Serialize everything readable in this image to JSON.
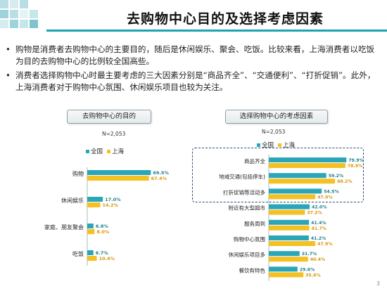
{
  "title": "去购物中心目的及选择考虑因素",
  "bullets": [
    "购物是消费者去购物中心的主要目的，随后是休闲娱乐、聚会、吃饭。比较来看，上海消费者以吃饭为目的去购物中心的比例较全国高些。",
    "消费者选择购物中心时最主要考虑的三大因素分别是“商品齐全”、“交通便利”、“打折促销”。此外，上海消费者对于购物中心氛围、休闲娱乐项目也较为关注。"
  ],
  "colors": {
    "national": "#2aa6b8",
    "shanghai": "#f5c022",
    "accent": "#1aa3b5"
  },
  "page_number": "3",
  "chart_data": [
    {
      "type": "bar",
      "orientation": "horizontal",
      "title": "去购物中心的目的",
      "note": "N=2,053",
      "categories": [
        "购物",
        "休闲娱乐",
        "家庭、朋友聚会",
        "吃饭"
      ],
      "series": [
        {
          "name": "全国",
          "values": [
            69.5,
            17.0,
            6.8,
            6.7
          ],
          "labels": [
            "69.5%",
            "17.0%",
            "6.8%",
            "6.7%"
          ]
        },
        {
          "name": "上海",
          "values": [
            67.4,
            14.2,
            8.0,
            10.4
          ],
          "labels": [
            "67.4%",
            "14.2%",
            "8.0%",
            "10.4%"
          ]
        }
      ],
      "xlim": [
        0,
        100
      ],
      "legend": "top-left",
      "grid": false
    },
    {
      "type": "bar",
      "orientation": "horizontal",
      "title": "选择购物中心的考虑因素",
      "note": "N=2,053",
      "categories": [
        "商品齐全",
        "地域交通(包括停车)",
        "打折促销等活动多",
        "附近有大型超市",
        "服务周到",
        "购物中心氛围",
        "休闲娱乐项目多",
        "餐饮有特色"
      ],
      "series": [
        {
          "name": "全国",
          "values": [
            79.9,
            59.2,
            54.5,
            42.0,
            41.4,
            41.2,
            31.7,
            29.6
          ],
          "labels": [
            "79.9%",
            "59.2%",
            "54.5%",
            "42.0%",
            "41.4%",
            "41.2%",
            "31.7%",
            "29.6%"
          ]
        },
        {
          "name": "上海",
          "values": [
            78.9,
            68.2,
            47.9,
            37.2,
            41.7,
            47.9,
            40.4,
            35.6
          ],
          "labels": [
            "78.9%",
            "68.2%",
            "47.9%",
            "37.2%",
            "41.7%",
            "47.9%",
            "40.4%",
            "35.6%"
          ]
        }
      ],
      "xlim": [
        0,
        100
      ],
      "legend": "top-left",
      "grid": false
    }
  ]
}
